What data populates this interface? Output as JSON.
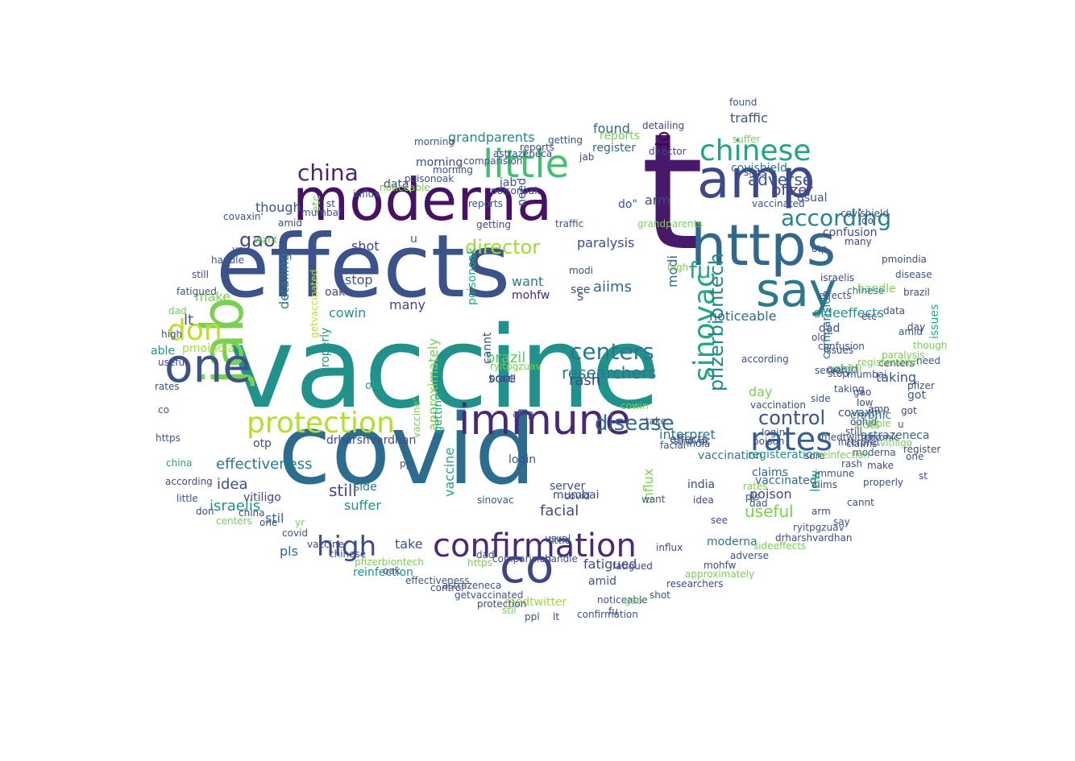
{
  "palette": [
    "#440154",
    "#482475",
    "#414487",
    "#355f8d",
    "#2a788e",
    "#21918c",
    "#22a884",
    "#44bf70",
    "#7ad151",
    "#bddf26"
  ],
  "words": [
    {
      "text": "vaccine",
      "color": "#21918c"
    },
    {
      "text": "covid",
      "color": "#2c6c8f"
    },
    {
      "text": "t",
      "color": "#48186a"
    },
    {
      "text": "effects",
      "color": "#3b528b"
    },
    {
      "text": "moderna",
      "color": "#471164"
    },
    {
      "text": "amp",
      "color": "#3e4989"
    },
    {
      "text": "https",
      "color": "#31688e"
    },
    {
      "text": "jab",
      "color": "#7ad151"
    },
    {
      "text": "immune",
      "color": "#482878"
    },
    {
      "text": "co",
      "color": "#404387"
    },
    {
      "text": "one",
      "color": "#3b528b"
    },
    {
      "text": "say",
      "color": "#2a788e"
    },
    {
      "text": "little",
      "color": "#44bf70"
    },
    {
      "text": "chinese",
      "color": "#21a585"
    },
    {
      "text": "confirmation",
      "color": "#482878"
    },
    {
      "text": "protection",
      "color": "#b5de2b"
    },
    {
      "text": "high",
      "color": "#3e4989"
    },
    {
      "text": "rates",
      "color": "#355f8d"
    },
    {
      "text": "don",
      "color": "#bddf26"
    },
    {
      "text": "according",
      "color": "#25848e"
    },
    {
      "text": "china",
      "color": "#482475"
    },
    {
      "text": "centers",
      "color": "#2a788e"
    },
    {
      "text": "disease",
      "color": "#31688e"
    },
    {
      "text": "control",
      "color": "#3b528b"
    },
    {
      "text": "sinovac",
      "color": "#22a884"
    },
    {
      "text": "fu",
      "color": "#22a884"
    },
    {
      "text": "director",
      "color": "#a0da39"
    },
    {
      "text": "pfizerbiontech",
      "color": "#23898e"
    },
    {
      "text": "researchers",
      "color": "#2a788e"
    },
    {
      "text": "gao",
      "color": "#3e4989"
    },
    {
      "text": "do",
      "color": "#440154"
    },
    {
      "text": "adverse",
      "color": "#3b528b"
    },
    {
      "text": "effectiveness",
      "color": "#2a788e"
    },
    {
      "text": "fatigued",
      "color": "#3e4989"
    },
    {
      "text": "sideeffects",
      "color": "#21918c"
    },
    {
      "text": "israelis",
      "color": "#21918c"
    },
    {
      "text": "pfizer",
      "color": "#414487"
    },
    {
      "text": "traffic",
      "color": "#3b528b"
    },
    {
      "text": "covishield",
      "color": "#2a788e"
    },
    {
      "text": "found",
      "color": "#31688e"
    },
    {
      "text": "grandparents",
      "color": "#25848e"
    },
    {
      "text": "paralysis",
      "color": "#3e4989"
    },
    {
      "text": "aiims",
      "color": "#31688e"
    },
    {
      "text": "useful",
      "color": "#7ad151"
    },
    {
      "text": "brazil",
      "color": "#5ec962"
    },
    {
      "text": "noticeable",
      "color": "#31688e"
    },
    {
      "text": "taking",
      "color": "#3b528b"
    },
    {
      "text": "interpret",
      "color": "#2a788e"
    },
    {
      "text": "confusion",
      "color": "#3e4989"
    },
    {
      "text": "registeration",
      "color": "#21918c"
    },
    {
      "text": "mumbai",
      "color": "#3e4989"
    },
    {
      "text": "influx",
      "color": "#7ad151"
    },
    {
      "text": "modi",
      "color": "#31688e"
    },
    {
      "text": "poison",
      "color": "#3e4989"
    },
    {
      "text": "vaccinated",
      "color": "#31688e"
    },
    {
      "text": "handle",
      "color": "#7ad151"
    },
    {
      "text": "astrazeneca",
      "color": "#31688e"
    },
    {
      "text": "covaxin",
      "color": "#3e4989"
    },
    {
      "text": "slots",
      "color": "#7ad151"
    },
    {
      "text": "chronic",
      "color": "#2a788e"
    },
    {
      "text": "effects",
      "color": "#3e4989"
    },
    {
      "text": "idea",
      "color": "#3b528b"
    },
    {
      "text": "vitiligo",
      "color": "#3e4989"
    },
    {
      "text": "cowin",
      "color": "#21918c"
    },
    {
      "text": "oak",
      "color": "#3e4989"
    },
    {
      "text": "stop",
      "color": "#3b528b"
    },
    {
      "text": "sore",
      "color": "#3b528b"
    },
    {
      "text": "old",
      "color": "#22a884"
    },
    {
      "text": "approximately",
      "color": "#7ad151"
    },
    {
      "text": "ryitpgzuav",
      "color": "#7ad151"
    },
    {
      "text": "oohjd",
      "color": "#31688e"
    },
    {
      "text": "rash",
      "color": "#3e4989"
    },
    {
      "text": "getting",
      "color": "#22a884"
    },
    {
      "text": "cannt",
      "color": "#3b528b"
    },
    {
      "text": "mohfw",
      "color": "#482878"
    },
    {
      "text": "want",
      "color": "#2a788e"
    },
    {
      "text": "shot",
      "color": "#414487"
    },
    {
      "text": "many",
      "color": "#3e4989"
    },
    {
      "text": "make",
      "color": "#7ad151"
    },
    {
      "text": "lt",
      "color": "#3b528b"
    },
    {
      "text": "able",
      "color": "#21918c"
    },
    {
      "text": "pmoindia",
      "color": "#a0da39"
    },
    {
      "text": "detailing",
      "color": "#2a788e"
    },
    {
      "text": "though",
      "color": "#3b528b"
    },
    {
      "text": "data",
      "color": "#414487"
    },
    {
      "text": "jab",
      "color": "#3b528b"
    },
    {
      "text": "morning",
      "color": "#3e4989"
    },
    {
      "text": "register",
      "color": "#31688e"
    },
    {
      "text": "reports",
      "color": "#7ad151"
    },
    {
      "text": "drharshvardhan",
      "color": "#3e4989"
    },
    {
      "text": "otp",
      "color": "#3e4989"
    },
    {
      "text": "still",
      "color": "#3e4989"
    },
    {
      "text": "suffer",
      "color": "#21918c"
    },
    {
      "text": "pls",
      "color": "#31688e"
    },
    {
      "text": "stil",
      "color": "#31688e"
    },
    {
      "text": "india",
      "color": "#3e4989"
    },
    {
      "text": "server",
      "color": "#3b528b"
    },
    {
      "text": "facial",
      "color": "#3e4989"
    },
    {
      "text": "reinfection",
      "color": "#21918c"
    },
    {
      "text": "medtwitter",
      "color": "#a0da39"
    },
    {
      "text": "amid",
      "color": "#3b528b"
    },
    {
      "text": "vaccine",
      "color": "#22a884"
    },
    {
      "text": "login",
      "color": "#3b528b"
    },
    {
      "text": "side",
      "color": "#2a788e"
    },
    {
      "text": "take",
      "color": "#3b528b"
    },
    {
      "text": "dad",
      "color": "#3b528b"
    },
    {
      "text": "day",
      "color": "#7ad151"
    },
    {
      "text": "got",
      "color": "#3b528b"
    },
    {
      "text": "issues",
      "color": "#22a884"
    },
    {
      "text": "comparision",
      "color": "#2a788e"
    },
    {
      "text": "properly",
      "color": "#21918c"
    },
    {
      "text": "etc",
      "color": "#7ad151"
    },
    {
      "text": "low",
      "color": "#22a884"
    },
    {
      "text": "moderna",
      "color": "#2a788e"
    },
    {
      "text": "arm",
      "color": "#3e4989"
    },
    {
      "text": "see",
      "color": "#3b528b"
    },
    {
      "text": "vaccination",
      "color": "#2a788e"
    },
    {
      "text": "need",
      "color": "#3b528b"
    },
    {
      "text": "claims",
      "color": "#31688e"
    },
    {
      "text": "usual",
      "color": "#3b528b"
    },
    {
      "text": "u",
      "color": "#31688e"
    },
    {
      "text": "s",
      "color": "#3b528b"
    },
    {
      "text": "do\"",
      "color": "#3b528b"
    },
    {
      "text": "covaxin'",
      "color": "#3b528b"
    },
    {
      "text": "getvaccinated",
      "color": "#bddf26"
    },
    {
      "text": "poisonoak",
      "color": "#22a884"
    },
    {
      "text": "china",
      "color": "#22a884"
    },
    {
      "text": "one",
      "color": "#3b528b"
    },
    {
      "text": "covid",
      "color": "#3e4989"
    },
    {
      "text": "brazil",
      "color": "#3e4989"
    },
    {
      "text": "amp",
      "color": "#3b528b"
    },
    {
      "text": "little",
      "color": "#3e4989"
    },
    {
      "text": "gao",
      "color": "#3e4989"
    },
    {
      "text": "https",
      "color": "#7ad151"
    },
    {
      "text": "vaccine'",
      "color": "#7ad151"
    },
    {
      "text": "st",
      "color": "#3b528b"
    },
    {
      "text": "dad",
      "color": "#3e4989"
    },
    {
      "text": "ppl",
      "color": "#3b528b"
    },
    {
      "text": "centers",
      "color": "#3e4989"
    },
    {
      "text": "sinovac",
      "color": "#3b528b"
    },
    {
      "text": "according",
      "color": "#3b528b"
    },
    {
      "text": "useful",
      "color": "#7ad151"
    },
    {
      "text": "dad",
      "color": "#3b528b"
    },
    {
      "text": "still",
      "color": "#3e4989"
    },
    {
      "text": "rates",
      "color": "#7ad151"
    },
    {
      "text": "yr",
      "color": "#7ad151"
    },
    {
      "text": "pfizer",
      "color": "#3b528b"
    },
    {
      "text": "chinese",
      "color": "#2a788e"
    },
    {
      "text": "handle",
      "color": "#3b528b"
    },
    {
      "text": "amid",
      "color": "#3b528b"
    },
    {
      "text": "mumbai",
      "color": "#3b528b"
    },
    {
      "text": "fatigued",
      "color": "#3e4989"
    },
    {
      "text": "comparision",
      "color": "#3e4989"
    },
    {
      "text": "want",
      "color": "#3b528b"
    },
    {
      "text": "morning",
      "color": "#3b528b"
    },
    {
      "text": "influx",
      "color": "#3e4989"
    },
    {
      "text": "noticeable",
      "color": "#3b528b"
    },
    {
      "text": "astrazeneca",
      "color": "#3b528b"
    },
    {
      "text": "poisonoak",
      "color": "#3e4989"
    },
    {
      "text": "reports",
      "color": "#3b528b"
    },
    {
      "text": "getting",
      "color": "#3e4989"
    },
    {
      "text": "director",
      "color": "#3e4989"
    },
    {
      "text": "usual",
      "color": "#3b528b"
    },
    {
      "text": "vaccinated",
      "color": "#3b528b"
    },
    {
      "text": "server",
      "color": "#3b528b"
    },
    {
      "text": "claims",
      "color": "#3e4989"
    },
    {
      "text": "oohjd",
      "color": "#3e4989"
    },
    {
      "text": "chronic",
      "color": "#3b528b"
    },
    {
      "text": "vaccination",
      "color": "#3e4989"
    },
    {
      "text": "sinovac",
      "color": "#3b528b"
    },
    {
      "text": "confusion",
      "color": "#3b528b"
    },
    {
      "text": "cowin",
      "color": "#7ad151"
    },
    {
      "text": "modi",
      "color": "#3b528b"
    },
    {
      "text": "grandparents",
      "color": "#7ad151"
    },
    {
      "text": "paralysis",
      "color": "#7ad151"
    },
    {
      "text": "high",
      "color": "#7ad151"
    },
    {
      "text": "traffic",
      "color": "#3b528b"
    },
    {
      "text": "israelis",
      "color": "#3e4989"
    },
    {
      "text": "slots",
      "color": "#3e4989"
    },
    {
      "text": "covishield",
      "color": "#3b528b"
    },
    {
      "text": "detailing",
      "color": "#3e4989"
    },
    {
      "text": "found",
      "color": "#3b528b"
    },
    {
      "text": "issues",
      "color": "#3e4989"
    },
    {
      "text": "effects",
      "color": "#3b528b"
    },
    {
      "text": "jab",
      "color": "#3e4989"
    },
    {
      "text": "suffer",
      "color": "#7ad151"
    },
    {
      "text": "old",
      "color": "#3e4989"
    },
    {
      "text": "take",
      "color": "#3b528b"
    },
    {
      "text": "india",
      "color": "#3b528b"
    },
    {
      "text": "poison",
      "color": "#3e4989"
    },
    {
      "text": "stop",
      "color": "#3e4989"
    },
    {
      "text": "facial",
      "color": "#3b528b"
    },
    {
      "text": "registeration",
      "color": "#7ad151"
    },
    {
      "text": "idea",
      "color": "#3e4989"
    },
    {
      "text": "moderna",
      "color": "#3b528b"
    },
    {
      "text": "see",
      "color": "#3e4989"
    },
    {
      "text": "pls",
      "color": "#3b528b"
    },
    {
      "text": "low",
      "color": "#3e4989"
    },
    {
      "text": "interpret",
      "color": "#3b528b"
    },
    {
      "text": "sore",
      "color": "#3e4989"
    },
    {
      "text": "rash",
      "color": "#3b528b"
    },
    {
      "text": "make",
      "color": "#3e4989"
    },
    {
      "text": "able",
      "color": "#7ad151"
    },
    {
      "text": "login",
      "color": "#3b528b"
    },
    {
      "text": "amp",
      "color": "#3e4989"
    },
    {
      "text": "side",
      "color": "#3b528b"
    },
    {
      "text": "aiims",
      "color": "#3e4989"
    },
    {
      "text": "immune",
      "color": "#3b528b"
    },
    {
      "text": "reinfection",
      "color": "#7ad151"
    },
    {
      "text": "medtwitter",
      "color": "#3e4989"
    },
    {
      "text": "taking",
      "color": "#3b528b"
    },
    {
      "text": "etc'",
      "color": "#3e4989"
    },
    {
      "text": "otp",
      "color": "#3b528b"
    },
    {
      "text": "many",
      "color": "#3e4989"
    },
    {
      "text": "do'",
      "color": "#3b528b"
    },
    {
      "text": "pmoindia",
      "color": "#3e4989"
    },
    {
      "text": "disease",
      "color": "#3b528b"
    },
    {
      "text": "brazil",
      "color": "#3e4989"
    },
    {
      "text": "data",
      "color": "#3b528b"
    },
    {
      "text": "day",
      "color": "#3e4989"
    },
    {
      "text": "though",
      "color": "#7ad151"
    },
    {
      "text": "need",
      "color": "#3b528b"
    },
    {
      "text": "got",
      "color": "#3e4989"
    },
    {
      "text": "u",
      "color": "#3b528b"
    },
    {
      "text": "vitiligo",
      "color": "#7ad151"
    },
    {
      "text": "register",
      "color": "#3e4989"
    },
    {
      "text": "properly",
      "color": "#3b528b"
    },
    {
      "text": "cannt",
      "color": "#3e4989"
    },
    {
      "text": "say",
      "color": "#3b528b"
    },
    {
      "text": "arm",
      "color": "#3e4989"
    },
    {
      "text": "ryitpgzuav",
      "color": "#3b528b"
    },
    {
      "text": "drharshvardhan",
      "color": "#3e4989"
    },
    {
      "text": "sideeffects",
      "color": "#7ad151"
    },
    {
      "text": "adverse",
      "color": "#3b528b"
    },
    {
      "text": "mohfw",
      "color": "#3e4989"
    },
    {
      "text": "approximately",
      "color": "#7ad151"
    },
    {
      "text": "researchers",
      "color": "#3e4989"
    },
    {
      "text": "shot",
      "color": "#3b528b"
    },
    {
      "text": "gao",
      "color": "#7ad151"
    },
    {
      "text": "fu",
      "color": "#3e4989"
    },
    {
      "text": "confirmation",
      "color": "#3b528b"
    },
    {
      "text": "lt",
      "color": "#3e4989"
    },
    {
      "text": "ppl",
      "color": "#3b528b"
    },
    {
      "text": "stil",
      "color": "#7ad151"
    },
    {
      "text": "protection",
      "color": "#3e4989"
    },
    {
      "text": "getvaccinated",
      "color": "#3b528b"
    },
    {
      "text": "control",
      "color": "#3e4989"
    },
    {
      "text": "effectiveness",
      "color": "#3b528b"
    },
    {
      "text": "oak",
      "color": "#3e4989"
    },
    {
      "text": "pfizerbiontech",
      "color": "#7ad151"
    },
    {
      "text": "chinese",
      "color": "#3b528b"
    },
    {
      "text": "vaccine",
      "color": "#3e4989"
    },
    {
      "text": "covid",
      "color": "#3b528b"
    },
    {
      "text": "one",
      "color": "#3e4989"
    },
    {
      "text": "china",
      "color": "#3b528b"
    },
    {
      "text": "centers",
      "color": "#7ad151"
    },
    {
      "text": "don",
      "color": "#3e4989"
    },
    {
      "text": "little",
      "color": "#3b528b"
    },
    {
      "text": "according",
      "color": "#3e4989"
    },
    {
      "text": "https",
      "color": "#3b528b"
    },
    {
      "text": "co",
      "color": "#3e4989"
    },
    {
      "text": "rates",
      "color": "#3b528b"
    },
    {
      "text": "useful",
      "color": "#3e4989"
    },
    {
      "text": "high",
      "color": "#3b528b"
    },
    {
      "text": "dad",
      "color": "#7ad151"
    },
    {
      "text": "fatigued",
      "color": "#3b528b"
    },
    {
      "text": "still",
      "color": "#3e4989"
    },
    {
      "text": "handle",
      "color": "#3b528b"
    },
    {
      "text": "yr",
      "color": "#3e4989"
    },
    {
      "text": "want",
      "color": "#7ad151"
    },
    {
      "text": "amid",
      "color": "#3e4989"
    },
    {
      "text": "mumbai",
      "color": "#3b528b"
    },
    {
      "text": "st",
      "color": "#3e4989"
    },
    {
      "text": "influx",
      "color": "#3b528b"
    },
    {
      "text": "noticeable",
      "color": "#7ad151"
    },
    {
      "text": "poisonoak",
      "color": "#3b528b"
    },
    {
      "text": "morning",
      "color": "#3e4989"
    },
    {
      "text": "comparision",
      "color": "#3b528b"
    },
    {
      "text": "astrazeneca",
      "color": "#3e4989"
    },
    {
      "text": "reports",
      "color": "#3e4989"
    },
    {
      "text": "getting",
      "color": "#3b528b"
    }
  ]
}
